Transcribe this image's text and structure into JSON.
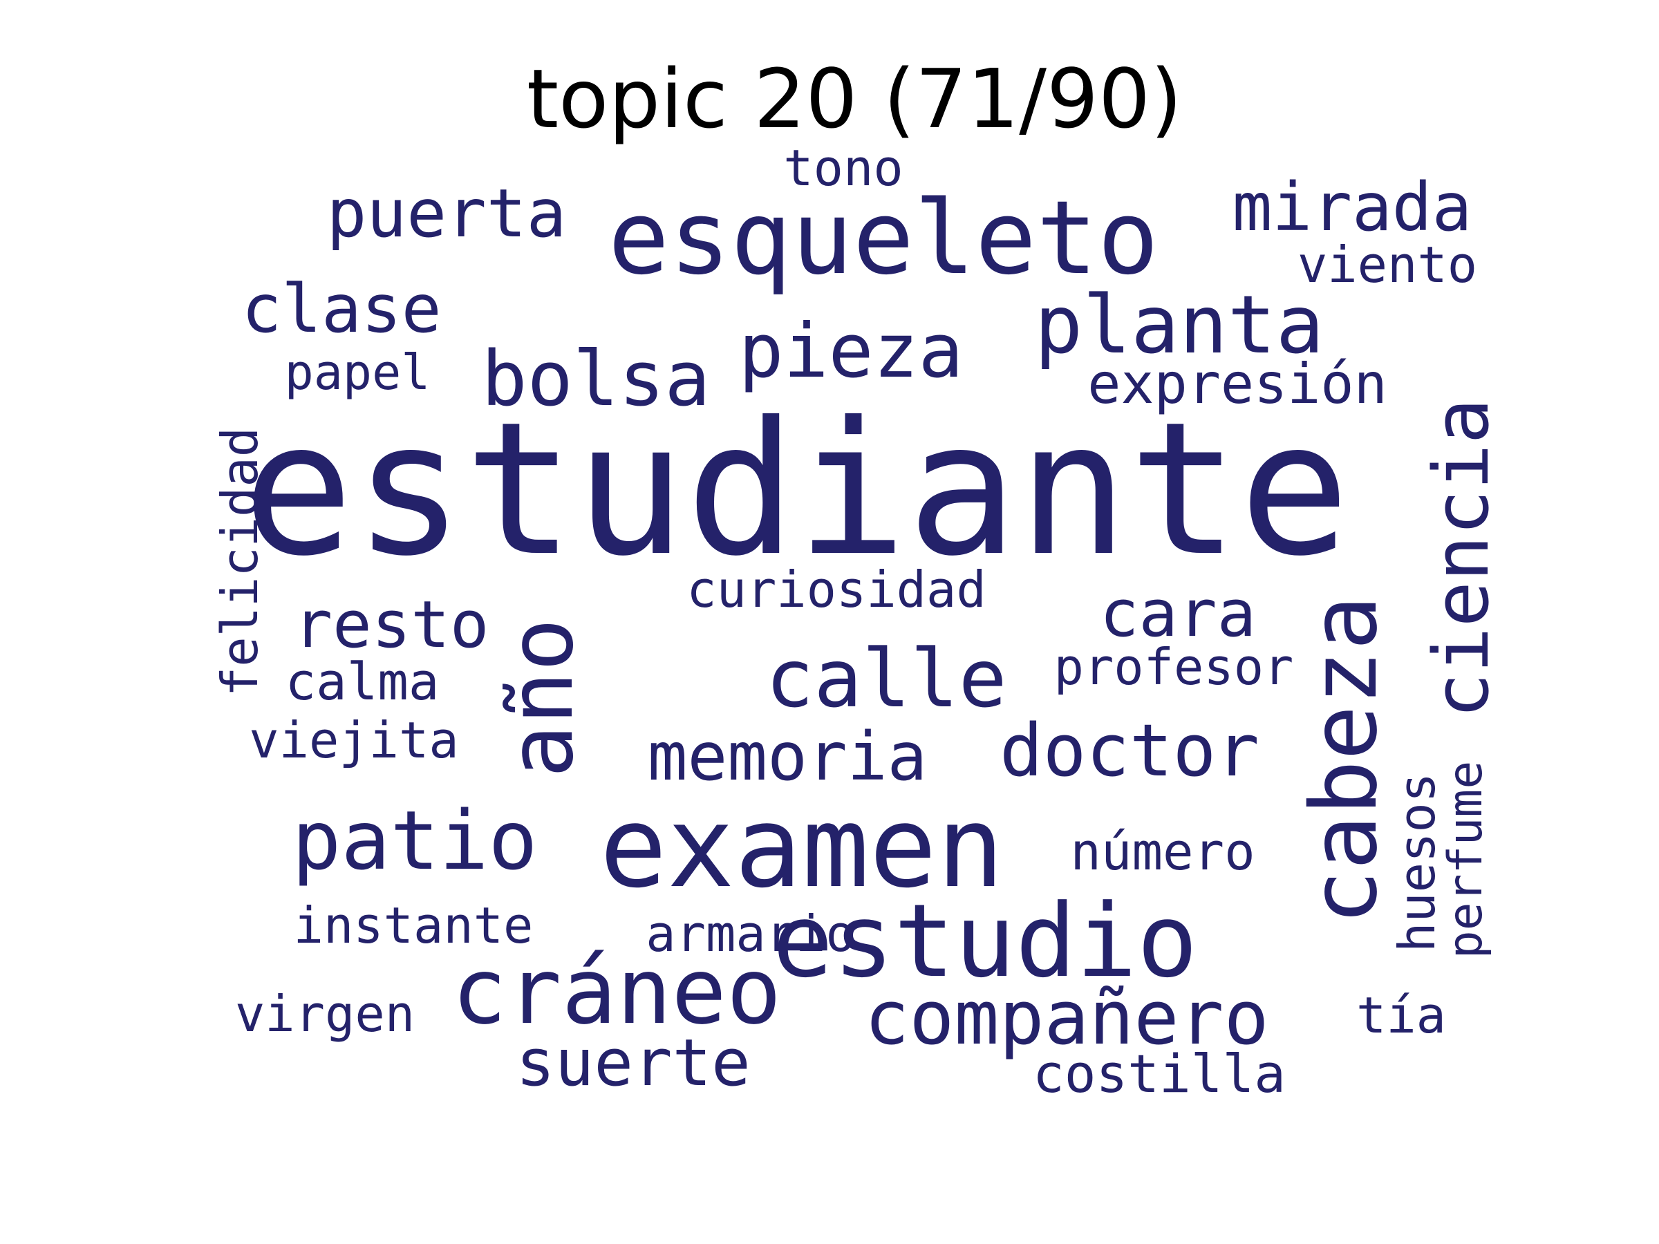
{
  "title": "topic 20 (71/90)",
  "word_color": "#24226a",
  "words": [
    "estudiante",
    "esqueleto",
    "examen",
    "estudio",
    "cráneo",
    "año",
    "cabeza",
    "planta",
    "calle",
    "patio",
    "compañero",
    "ciencia",
    "bolsa",
    "pieza",
    "doctor",
    "memoria",
    "mirada",
    "clase",
    "puerta",
    "suerte",
    "cara",
    "resto",
    "huesos",
    "perfume",
    "viento",
    "expresión",
    "tono",
    "papel",
    "curiosidad",
    "profesor",
    "calma",
    "felicidad",
    "viejita",
    "número",
    "instante",
    "armario",
    "virgen",
    "tía",
    "costilla"
  ]
}
